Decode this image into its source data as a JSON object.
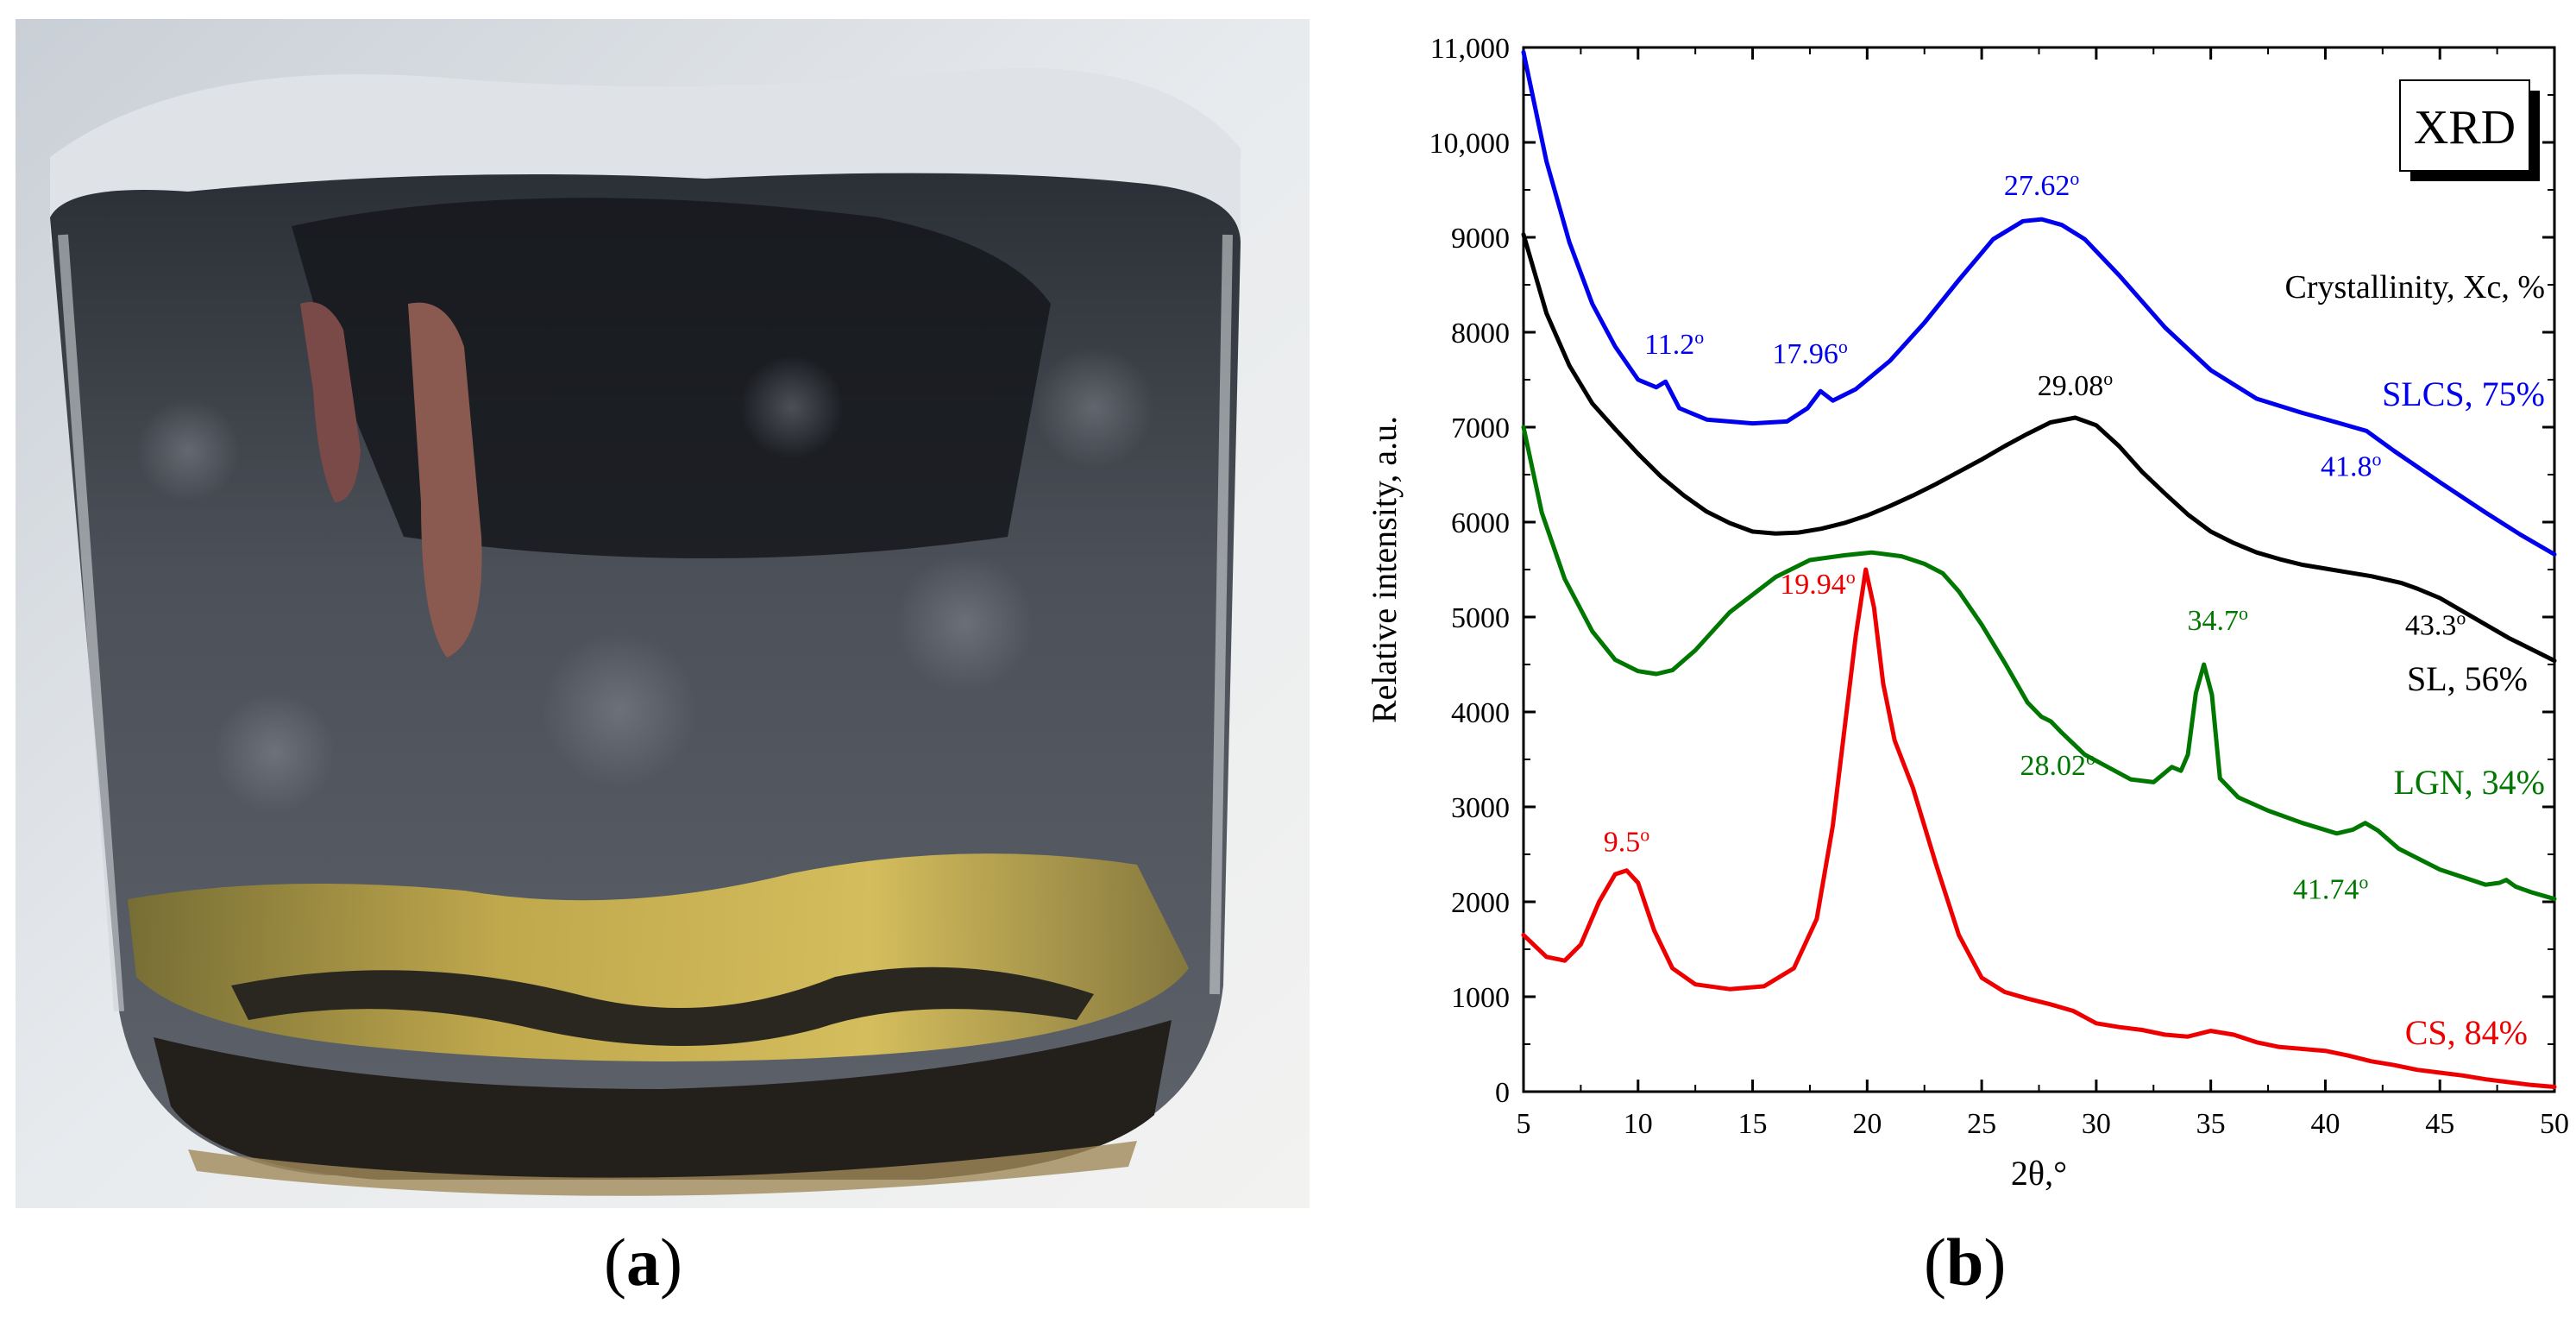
{
  "panels": {
    "a_label_open": "(",
    "a_label_letter": "a",
    "a_label_close": ")",
    "b_label_open": "(",
    "b_label_letter": "b",
    "b_label_close": ")"
  },
  "photo": {
    "subject": "glass-beaker-with-dark-sludge-and-yellow-liquid"
  },
  "chart_data": {
    "type": "line",
    "badge": "XRD",
    "legend_title": "Crystallinity, Xc, %",
    "xlabel": "2θ,°",
    "ylabel": "Relative intensity, a.u.",
    "xlim": [
      5,
      50
    ],
    "ylim": [
      0,
      11000
    ],
    "xticks": [
      5,
      10,
      15,
      20,
      25,
      30,
      35,
      40,
      45,
      50
    ],
    "yticks": [
      0,
      1000,
      2000,
      3000,
      4000,
      5000,
      6000,
      7000,
      8000,
      9000,
      10000,
      11000
    ],
    "ytick_labels": [
      "0",
      "1000",
      "2000",
      "3000",
      "4000",
      "5000",
      "6000",
      "7000",
      "8000",
      "9000",
      "10,000",
      "11,000"
    ],
    "series": [
      {
        "name": "SLCS, 75%",
        "color": "#0000ee",
        "x": [
          5,
          6,
          7,
          8,
          9,
          10,
          10.8,
          11.2,
          11.8,
          13,
          15,
          16.5,
          17.4,
          17.96,
          18.5,
          19.5,
          21,
          22.5,
          24,
          25.5,
          26.8,
          27.62,
          28.5,
          29.5,
          31,
          33,
          35,
          37,
          39,
          40.5,
          41.8,
          43,
          45,
          47,
          48.5,
          50
        ],
        "y": [
          10950,
          9800,
          8950,
          8300,
          7850,
          7500,
          7420,
          7480,
          7200,
          7080,
          7040,
          7060,
          7200,
          7380,
          7280,
          7400,
          7700,
          8100,
          8550,
          8980,
          9170,
          9190,
          9130,
          8980,
          8600,
          8050,
          7600,
          7300,
          7150,
          7050,
          6960,
          6750,
          6420,
          6100,
          5870,
          5660
        ]
      },
      {
        "name": "SL, 56%",
        "color": "#000000",
        "x": [
          5,
          6,
          7,
          8,
          9,
          10,
          11,
          12,
          13,
          14,
          15,
          16,
          17,
          18,
          19,
          20,
          21,
          22,
          23,
          24,
          25,
          26,
          27,
          28,
          29.08,
          30,
          31,
          32,
          33,
          34,
          35,
          36,
          37,
          38,
          39,
          40,
          41,
          42,
          43.3,
          44,
          45,
          46,
          47,
          48,
          49,
          50
        ],
        "y": [
          9030,
          8200,
          7650,
          7250,
          6980,
          6720,
          6480,
          6280,
          6110,
          5990,
          5900,
          5880,
          5890,
          5930,
          5990,
          6070,
          6170,
          6280,
          6400,
          6530,
          6660,
          6800,
          6930,
          7050,
          7100,
          7020,
          6800,
          6530,
          6300,
          6080,
          5900,
          5780,
          5680,
          5610,
          5550,
          5510,
          5470,
          5430,
          5360,
          5300,
          5200,
          5060,
          4920,
          4780,
          4660,
          4540
        ]
      },
      {
        "name": "LGN, 34%",
        "color": "#007700",
        "x": [
          5,
          5.8,
          6.8,
          8,
          9,
          10,
          10.8,
          11.5,
          12.5,
          14,
          16,
          17.5,
          19,
          20.2,
          21.5,
          22.5,
          23.3,
          24,
          25,
          26,
          27,
          27.6,
          28.02,
          28.5,
          29.5,
          30.5,
          31.5,
          32.5,
          33.3,
          33.7,
          34,
          34.35,
          34.7,
          35.05,
          35.4,
          36.2,
          37.5,
          39,
          40.5,
          41.2,
          41.74,
          42.3,
          43.2,
          45,
          47,
          47.6,
          47.9,
          48.3,
          49,
          50
        ],
        "y": [
          7000,
          6100,
          5400,
          4850,
          4550,
          4430,
          4400,
          4440,
          4650,
          5050,
          5420,
          5600,
          5650,
          5680,
          5640,
          5560,
          5460,
          5270,
          4920,
          4520,
          4100,
          3950,
          3900,
          3780,
          3550,
          3420,
          3290,
          3260,
          3420,
          3380,
          3550,
          4200,
          4500,
          4180,
          3300,
          3100,
          2960,
          2830,
          2720,
          2760,
          2830,
          2750,
          2560,
          2340,
          2180,
          2200,
          2230,
          2160,
          2100,
          2030
        ]
      },
      {
        "name": "CS, 84%",
        "color": "#ee0000",
        "x": [
          5,
          6,
          6.8,
          7.5,
          8.3,
          9,
          9.5,
          10,
          10.7,
          11.5,
          12.5,
          14,
          15.5,
          16.8,
          17.8,
          18.5,
          19,
          19.5,
          19.94,
          20.3,
          20.7,
          21.2,
          22,
          23,
          24,
          25,
          26,
          27,
          28,
          29,
          30,
          31,
          32,
          33,
          34,
          35,
          36,
          37,
          38,
          39,
          40,
          41,
          42,
          43,
          44,
          45,
          46,
          47,
          48,
          49,
          50
        ],
        "y": [
          1650,
          1420,
          1380,
          1550,
          2000,
          2290,
          2330,
          2200,
          1700,
          1300,
          1130,
          1080,
          1110,
          1300,
          1820,
          2800,
          3800,
          4800,
          5500,
          5100,
          4300,
          3700,
          3200,
          2400,
          1650,
          1200,
          1050,
          980,
          920,
          850,
          720,
          680,
          650,
          600,
          580,
          640,
          600,
          520,
          470,
          450,
          430,
          380,
          320,
          280,
          230,
          200,
          170,
          130,
          100,
          70,
          50
        ]
      }
    ],
    "annotations": [
      {
        "text": "27.62",
        "x": 27.62,
        "y": 9190,
        "color": "#0000ee"
      },
      {
        "text": "11.2",
        "x": 11.2,
        "y": 7480,
        "color": "#0000ee"
      },
      {
        "text": "17.96",
        "x": 17.96,
        "y": 7380,
        "color": "#0000ee"
      },
      {
        "text": "41.8",
        "x": 41.8,
        "y": 6960,
        "color": "#0000ee"
      },
      {
        "text": "29.08",
        "x": 29.08,
        "y": 7100,
        "color": "#000000"
      },
      {
        "text": "43.3",
        "x": 43.3,
        "y": 5360,
        "color": "#000000"
      },
      {
        "text": "28.02",
        "x": 28.02,
        "y": 3900,
        "color": "#007700"
      },
      {
        "text": "34.7",
        "x": 34.7,
        "y": 4500,
        "color": "#007700"
      },
      {
        "text": "41.74",
        "x": 41.74,
        "y": 2830,
        "color": "#007700"
      },
      {
        "text": "19.94",
        "x": 19.94,
        "y": 5500,
        "color": "#ee0000"
      },
      {
        "text": "9.5",
        "x": 9.5,
        "y": 2330,
        "color": "#ee0000"
      }
    ],
    "degree_sign": "o"
  }
}
